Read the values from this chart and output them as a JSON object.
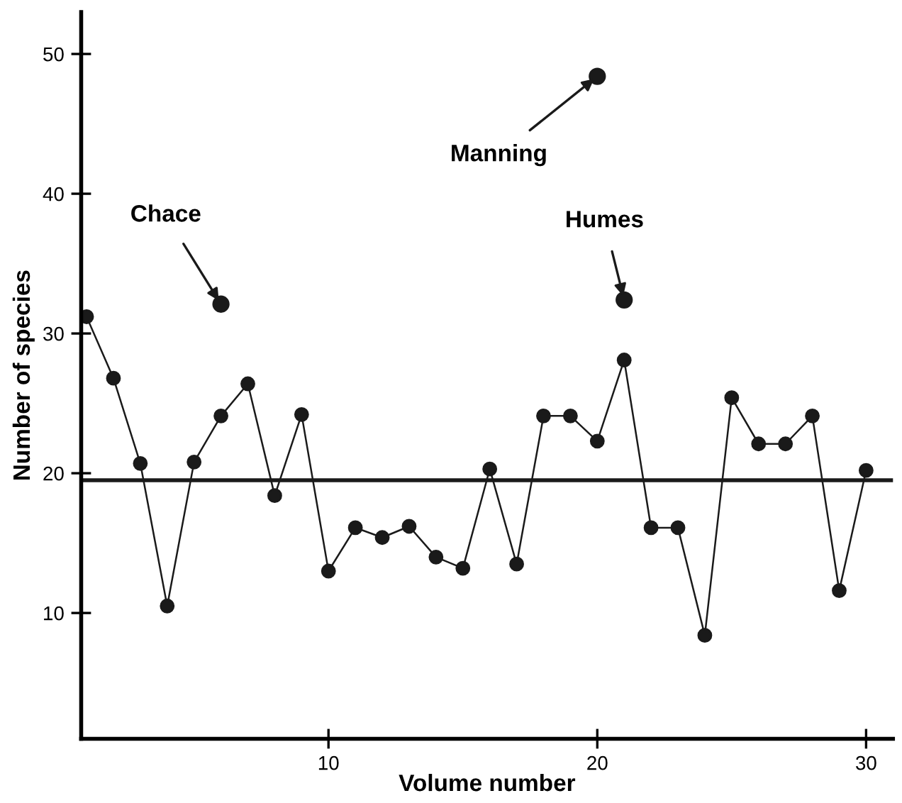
{
  "chart_data": {
    "type": "line",
    "xlabel": "Volume number",
    "ylabel": "Number of species",
    "xlim": [
      0.8,
      31
    ],
    "ylim": [
      1,
      53
    ],
    "xticks": [
      10,
      20,
      30
    ],
    "yticks": [
      10,
      20,
      30,
      40,
      50
    ],
    "grid": false,
    "legend": false,
    "marker": "circle",
    "line_style": "solid",
    "series": [
      {
        "color": "#1a1a1a",
        "x": [
          1,
          2,
          3,
          4,
          5,
          6,
          7,
          8,
          9,
          10,
          11,
          12,
          13,
          14,
          15,
          16,
          17,
          18,
          19,
          20,
          21,
          22,
          23,
          24,
          25,
          26,
          27,
          28,
          29,
          30
        ],
        "values": [
          31.2,
          26.8,
          20.7,
          10.5,
          20.8,
          24.1,
          26.4,
          18.4,
          24.2,
          13.0,
          16.1,
          15.4,
          16.2,
          14.0,
          13.2,
          20.3,
          13.5,
          24.1,
          24.1,
          22.3,
          28.1,
          16.1,
          16.1,
          8.4,
          25.4,
          22.1,
          22.1,
          24.1,
          11.6,
          20.2
        ]
      },
      {
        "type": "scatter",
        "color": "#1a1a1a",
        "x": [
          6,
          20,
          21
        ],
        "values": [
          32.1,
          48.4,
          32.4
        ]
      }
    ],
    "ref_lines": [
      {
        "axis": "y",
        "value": 19.5,
        "color": "#1a1a1a"
      }
    ],
    "annotations": [
      {
        "text": "Chace",
        "x": 6,
        "y": 32.1
      },
      {
        "text": "Manning",
        "x": 20,
        "y": 48.4
      },
      {
        "text": "Humes",
        "x": 21,
        "y": 32.4
      }
    ]
  }
}
